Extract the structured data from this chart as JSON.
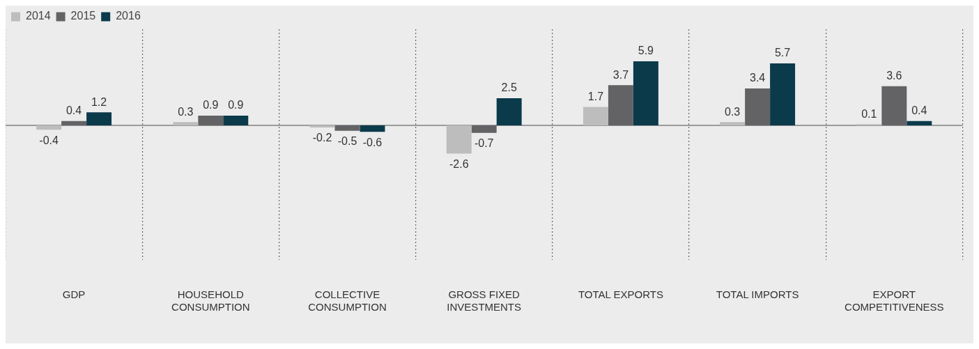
{
  "chart_data": {
    "type": "bar",
    "categories": [
      "GDP",
      "HOUSEHOLD CONSUMPTION",
      "COLLECTIVE CONSUMPTION",
      "GROSS FIXED INVESTMENTS",
      "TOTAL EXPORTS",
      "TOTAL IMPORTS",
      "EXPORT COMPETITIVENESS"
    ],
    "series": [
      {
        "name": "2014",
        "color": "#bdbdbd",
        "values": [
          -0.4,
          0.3,
          -0.2,
          -2.6,
          1.7,
          0.3,
          0.1
        ]
      },
      {
        "name": "2015",
        "color": "#636366",
        "values": [
          0.4,
          0.9,
          -0.5,
          -0.7,
          3.7,
          3.4,
          3.6
        ]
      },
      {
        "name": "2016",
        "color": "#0b3a4b",
        "values": [
          1.2,
          0.9,
          -0.6,
          2.5,
          5.9,
          5.7,
          0.4
        ]
      }
    ],
    "data_labels": true,
    "legend": "top left",
    "grid": "x",
    "ref_lines": [
      {
        "axis": "y",
        "value": 0,
        "color": "#808080"
      }
    ]
  }
}
